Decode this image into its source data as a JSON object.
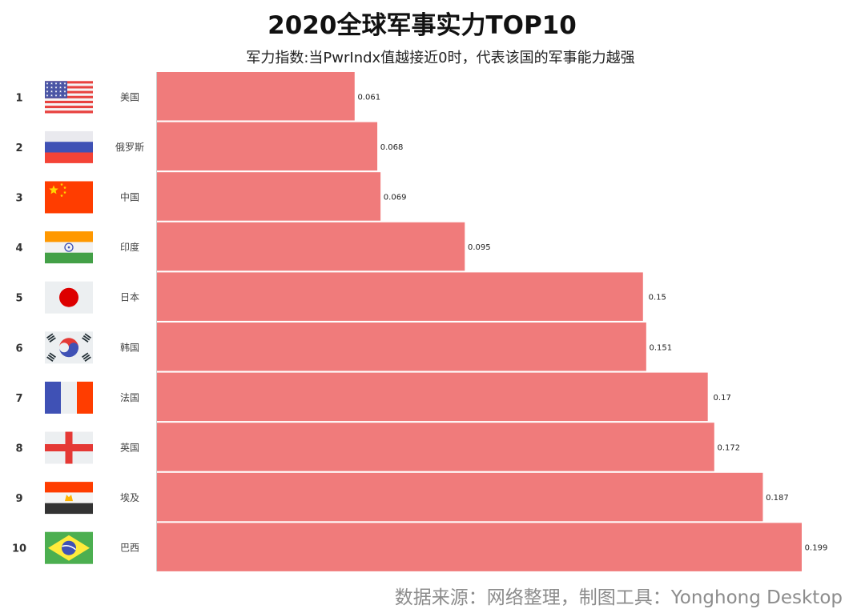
{
  "title": "2020全球军事实力TOP10",
  "subtitle": "军力指数:当PwrIndx值越接近0时，代表该国的军事能力越强",
  "source": "数据来源：网络整理，制图工具：Yonghong Desktop",
  "colors": {
    "bar": "#f07b7b",
    "axis": "#cccccc"
  },
  "chart_data": {
    "type": "bar",
    "orientation": "horizontal",
    "title": "2020全球军事实力TOP10",
    "subtitle": "军力指数:当PwrIndx值越接近0时，代表该国的军事能力越强",
    "categories": [
      "美国",
      "俄罗斯",
      "中国",
      "印度",
      "日本",
      "韩国",
      "法国",
      "英国",
      "埃及",
      "巴西"
    ],
    "ranks": [
      "1",
      "2",
      "3",
      "4",
      "5",
      "6",
      "7",
      "8",
      "9",
      "10"
    ],
    "values": [
      0.061,
      0.068,
      0.069,
      0.095,
      0.15,
      0.151,
      0.17,
      0.172,
      0.187,
      0.199
    ],
    "value_labels": [
      "0.061",
      "0.068",
      "0.069",
      "0.095",
      "0.15",
      "0.151",
      "0.17",
      "0.172",
      "0.187",
      "0.199"
    ],
    "flags": [
      "usa-flag",
      "russia-flag",
      "china-flag",
      "india-flag",
      "japan-flag",
      "south-korea-flag",
      "france-flag",
      "england-flag",
      "egypt-flag",
      "brazil-flag"
    ],
    "xlim": [
      0,
      0.199
    ],
    "grid": false,
    "legend": "none"
  }
}
